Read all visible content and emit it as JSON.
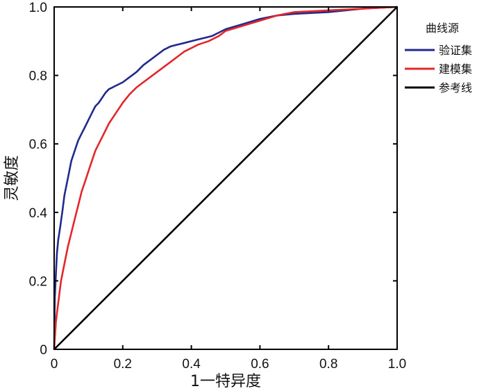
{
  "chart_data": {
    "type": "line",
    "xlabel": "1一特异度",
    "ylabel": "灵敏度",
    "xlim": [
      0,
      1
    ],
    "ylim": [
      0,
      1
    ],
    "x_ticks": [
      "0",
      "0.2",
      "0.4",
      "0.6",
      "0.8",
      "1.0"
    ],
    "y_ticks": [
      "0",
      "0.2",
      "0.4",
      "0.6",
      "0.8",
      "1.0"
    ],
    "grid": false,
    "legend_position": "right",
    "legend_title": "曲线源",
    "series": [
      {
        "name": "验证集",
        "color": "#1f2a8c",
        "x": [
          0,
          0.002,
          0.005,
          0.008,
          0.012,
          0.018,
          0.025,
          0.03,
          0.04,
          0.05,
          0.06,
          0.07,
          0.08,
          0.09,
          0.1,
          0.11,
          0.12,
          0.13,
          0.14,
          0.15,
          0.16,
          0.17,
          0.18,
          0.2,
          0.22,
          0.24,
          0.26,
          0.28,
          0.3,
          0.32,
          0.34,
          0.36,
          0.38,
          0.4,
          0.42,
          0.44,
          0.46,
          0.48,
          0.5,
          0.55,
          0.6,
          0.65,
          0.7,
          0.8,
          0.9,
          1.0
        ],
        "y": [
          0,
          0.15,
          0.22,
          0.28,
          0.32,
          0.36,
          0.41,
          0.45,
          0.5,
          0.55,
          0.58,
          0.61,
          0.63,
          0.65,
          0.67,
          0.69,
          0.71,
          0.72,
          0.735,
          0.75,
          0.76,
          0.765,
          0.77,
          0.78,
          0.795,
          0.81,
          0.83,
          0.845,
          0.86,
          0.875,
          0.885,
          0.89,
          0.895,
          0.9,
          0.905,
          0.91,
          0.915,
          0.925,
          0.935,
          0.95,
          0.965,
          0.975,
          0.98,
          0.985,
          0.995,
          1.0
        ]
      },
      {
        "name": "建模集",
        "color": "#e3262a",
        "x": [
          0,
          0.005,
          0.01,
          0.015,
          0.02,
          0.03,
          0.04,
          0.05,
          0.06,
          0.07,
          0.08,
          0.09,
          0.1,
          0.11,
          0.12,
          0.13,
          0.14,
          0.15,
          0.16,
          0.18,
          0.2,
          0.22,
          0.24,
          0.26,
          0.28,
          0.3,
          0.32,
          0.34,
          0.36,
          0.38,
          0.4,
          0.42,
          0.45,
          0.48,
          0.5,
          0.55,
          0.6,
          0.65,
          0.7,
          0.8,
          0.9,
          1.0
        ],
        "y": [
          0,
          0.08,
          0.12,
          0.16,
          0.2,
          0.25,
          0.3,
          0.34,
          0.38,
          0.42,
          0.46,
          0.49,
          0.52,
          0.55,
          0.58,
          0.6,
          0.62,
          0.64,
          0.66,
          0.69,
          0.72,
          0.745,
          0.765,
          0.78,
          0.795,
          0.81,
          0.825,
          0.84,
          0.855,
          0.87,
          0.88,
          0.89,
          0.9,
          0.915,
          0.93,
          0.945,
          0.96,
          0.975,
          0.985,
          0.99,
          0.995,
          1.0
        ]
      },
      {
        "name": "参考线",
        "color": "#000000",
        "x": [
          0,
          1
        ],
        "y": [
          0,
          1
        ]
      }
    ]
  }
}
